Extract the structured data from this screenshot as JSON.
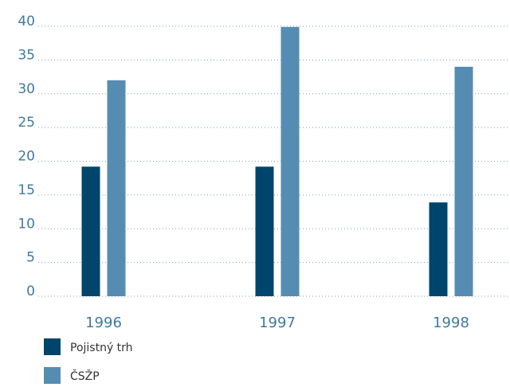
{
  "chart_data": {
    "type": "bar",
    "categories": [
      "1996",
      "1997",
      "1998"
    ],
    "series": [
      {
        "name": "Pojistný trh",
        "color": "#00456b",
        "values": [
          19.2,
          19.2,
          13.9
        ]
      },
      {
        "name": "ČSŽP",
        "color": "#558db2",
        "values": [
          32.0,
          39.9,
          34.0
        ]
      }
    ],
    "ylim": [
      0,
      40
    ],
    "yticks": [
      0,
      5,
      10,
      15,
      20,
      25,
      30,
      35,
      40
    ],
    "grid": true
  }
}
